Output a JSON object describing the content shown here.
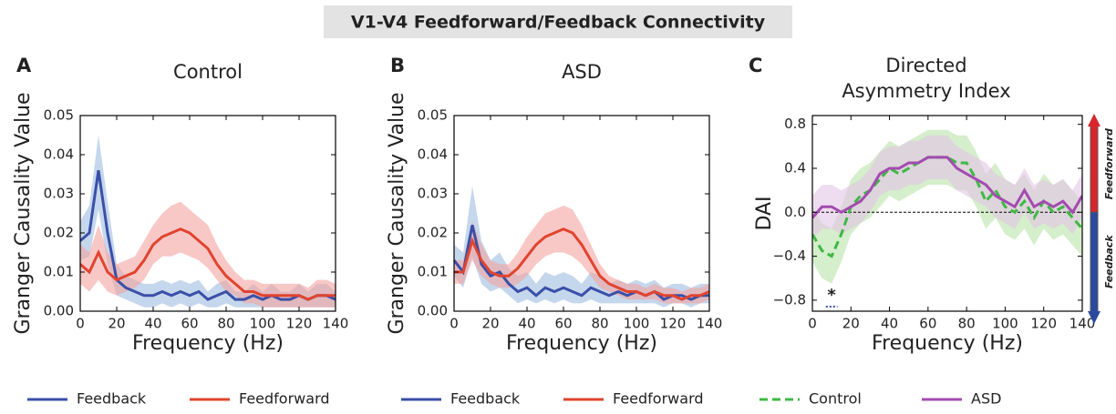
{
  "figure_title": "V1-V4 Feedforward/Feedback Connectivity",
  "chart_data": [
    {
      "type": "line",
      "panel": "A",
      "title": "Control",
      "xlabel": "Frequency (Hz)",
      "ylabel": "Granger Causality Value",
      "x": [
        0,
        5,
        10,
        15,
        20,
        25,
        30,
        35,
        40,
        45,
        50,
        55,
        60,
        65,
        70,
        75,
        80,
        85,
        90,
        95,
        100,
        105,
        110,
        115,
        120,
        125,
        130,
        135,
        140
      ],
      "xlim": [
        0,
        140
      ],
      "xticks": [
        0,
        20,
        40,
        60,
        80,
        100,
        120,
        140
      ],
      "ylim": [
        0,
        0.05
      ],
      "yticks": [
        {
          "value": 0,
          "label": "0.00"
        },
        {
          "value": 0.01,
          "label": "0.01"
        },
        {
          "value": 0.02,
          "label": "0.02"
        },
        {
          "value": 0.03,
          "label": "0.03"
        },
        {
          "value": 0.04,
          "label": "0.04"
        },
        {
          "value": 0.05,
          "label": "0.05"
        }
      ],
      "legend": "bottom",
      "series": [
        {
          "name": "Feedback",
          "color": "#3a4fa8",
          "band_color": "#9fbde0",
          "linestyle": "solid",
          "values": [
            0.018,
            0.02,
            0.036,
            0.02,
            0.008,
            0.006,
            0.005,
            0.004,
            0.004,
            0.005,
            0.004,
            0.005,
            0.004,
            0.005,
            0.003,
            0.004,
            0.005,
            0.003,
            0.003,
            0.004,
            0.003,
            0.004,
            0.003,
            0.003,
            0.004,
            0.003,
            0.004,
            0.004,
            0.003
          ],
          "lower": [
            0.013,
            0.014,
            0.026,
            0.012,
            0.004,
            0.003,
            0.002,
            0.001,
            0.001,
            0.002,
            0.001,
            0.002,
            0.001,
            0.002,
            0.001,
            0.001,
            0.002,
            0.001,
            0.001,
            0.001,
            0.001,
            0.001,
            0.001,
            0.001,
            0.001,
            0.001,
            0.001,
            0.001,
            0.001
          ],
          "upper": [
            0.023,
            0.027,
            0.045,
            0.028,
            0.012,
            0.009,
            0.008,
            0.007,
            0.007,
            0.008,
            0.007,
            0.008,
            0.007,
            0.008,
            0.005,
            0.007,
            0.008,
            0.005,
            0.005,
            0.007,
            0.005,
            0.007,
            0.005,
            0.005,
            0.007,
            0.005,
            0.007,
            0.007,
            0.005
          ]
        },
        {
          "name": "Feedforward",
          "color": "#e0442f",
          "band_color": "#f4a3a0",
          "linestyle": "solid",
          "values": [
            0.012,
            0.01,
            0.015,
            0.01,
            0.008,
            0.009,
            0.01,
            0.013,
            0.017,
            0.019,
            0.02,
            0.021,
            0.02,
            0.018,
            0.016,
            0.012,
            0.009,
            0.007,
            0.005,
            0.005,
            0.004,
            0.004,
            0.004,
            0.004,
            0.004,
            0.003,
            0.004,
            0.004,
            0.004
          ],
          "lower": [
            0.007,
            0.005,
            0.008,
            0.005,
            0.004,
            0.005,
            0.006,
            0.008,
            0.012,
            0.014,
            0.014,
            0.015,
            0.014,
            0.013,
            0.011,
            0.008,
            0.005,
            0.004,
            0.002,
            0.002,
            0.001,
            0.001,
            0.001,
            0.001,
            0.001,
            0.001,
            0.001,
            0.001,
            0.001
          ],
          "upper": [
            0.017,
            0.015,
            0.022,
            0.015,
            0.012,
            0.013,
            0.014,
            0.018,
            0.022,
            0.025,
            0.027,
            0.028,
            0.026,
            0.024,
            0.022,
            0.017,
            0.013,
            0.01,
            0.008,
            0.008,
            0.007,
            0.007,
            0.007,
            0.007,
            0.007,
            0.006,
            0.008,
            0.008,
            0.007
          ]
        }
      ]
    },
    {
      "type": "line",
      "panel": "B",
      "title": "ASD",
      "xlabel": "Frequency (Hz)",
      "ylabel": "Granger Causality Value",
      "x": [
        0,
        5,
        10,
        15,
        20,
        25,
        30,
        35,
        40,
        45,
        50,
        55,
        60,
        65,
        70,
        75,
        80,
        85,
        90,
        95,
        100,
        105,
        110,
        115,
        120,
        125,
        130,
        135,
        140
      ],
      "xlim": [
        0,
        140
      ],
      "xticks": [
        0,
        20,
        40,
        60,
        80,
        100,
        120,
        140
      ],
      "ylim": [
        0,
        0.05
      ],
      "yticks": [
        {
          "value": 0,
          "label": "0.00"
        },
        {
          "value": 0.01,
          "label": "0.01"
        },
        {
          "value": 0.02,
          "label": "0.02"
        },
        {
          "value": 0.03,
          "label": "0.03"
        },
        {
          "value": 0.04,
          "label": "0.04"
        },
        {
          "value": 0.05,
          "label": "0.05"
        }
      ],
      "legend": "bottom",
      "series": [
        {
          "name": "Feedback",
          "color": "#3a4fa8",
          "band_color": "#9fbde0",
          "linestyle": "solid",
          "values": [
            0.013,
            0.01,
            0.022,
            0.012,
            0.009,
            0.01,
            0.007,
            0.005,
            0.006,
            0.004,
            0.006,
            0.005,
            0.006,
            0.005,
            0.004,
            0.006,
            0.005,
            0.004,
            0.005,
            0.004,
            0.005,
            0.004,
            0.005,
            0.003,
            0.004,
            0.004,
            0.003,
            0.004,
            0.004
          ],
          "lower": [
            0.009,
            0.006,
            0.014,
            0.007,
            0.005,
            0.006,
            0.004,
            0.002,
            0.003,
            0.002,
            0.003,
            0.002,
            0.003,
            0.002,
            0.002,
            0.003,
            0.002,
            0.002,
            0.002,
            0.002,
            0.002,
            0.002,
            0.002,
            0.001,
            0.002,
            0.002,
            0.001,
            0.002,
            0.002
          ],
          "upper": [
            0.017,
            0.015,
            0.032,
            0.018,
            0.013,
            0.015,
            0.011,
            0.009,
            0.01,
            0.007,
            0.01,
            0.009,
            0.01,
            0.009,
            0.007,
            0.01,
            0.009,
            0.007,
            0.008,
            0.007,
            0.008,
            0.007,
            0.008,
            0.006,
            0.007,
            0.007,
            0.006,
            0.007,
            0.007
          ]
        },
        {
          "name": "Feedforward",
          "color": "#e0442f",
          "band_color": "#f4a3a0",
          "linestyle": "solid",
          "values": [
            0.01,
            0.01,
            0.018,
            0.013,
            0.01,
            0.009,
            0.009,
            0.011,
            0.014,
            0.017,
            0.019,
            0.02,
            0.021,
            0.02,
            0.017,
            0.013,
            0.009,
            0.007,
            0.006,
            0.005,
            0.005,
            0.004,
            0.005,
            0.004,
            0.004,
            0.003,
            0.004,
            0.004,
            0.005
          ],
          "lower": [
            0.007,
            0.007,
            0.013,
            0.009,
            0.007,
            0.006,
            0.006,
            0.007,
            0.009,
            0.012,
            0.014,
            0.015,
            0.015,
            0.014,
            0.012,
            0.009,
            0.006,
            0.005,
            0.004,
            0.003,
            0.003,
            0.003,
            0.003,
            0.002,
            0.002,
            0.002,
            0.002,
            0.002,
            0.003
          ],
          "upper": [
            0.013,
            0.013,
            0.023,
            0.017,
            0.013,
            0.012,
            0.012,
            0.015,
            0.019,
            0.022,
            0.025,
            0.026,
            0.027,
            0.026,
            0.022,
            0.017,
            0.012,
            0.009,
            0.008,
            0.007,
            0.007,
            0.006,
            0.007,
            0.006,
            0.006,
            0.005,
            0.006,
            0.006,
            0.007
          ]
        }
      ]
    },
    {
      "type": "line",
      "panel": "C",
      "title": "Directed Asymmetry Index",
      "xlabel": "Frequency (Hz)",
      "ylabel": "DAI",
      "x": [
        0,
        5,
        10,
        15,
        20,
        25,
        30,
        35,
        40,
        45,
        50,
        55,
        60,
        65,
        70,
        75,
        80,
        85,
        90,
        95,
        100,
        105,
        110,
        115,
        120,
        125,
        130,
        135,
        140
      ],
      "xlim": [
        0,
        140
      ],
      "xticks": [
        0,
        20,
        40,
        60,
        80,
        100,
        120,
        140
      ],
      "ylim": [
        -0.9,
        0.88
      ],
      "yticks": [
        {
          "value": -0.8,
          "label": "−0.8"
        },
        {
          "value": -0.4,
          "label": "−0.4"
        },
        {
          "value": 0,
          "label": "0.0"
        },
        {
          "value": 0.4,
          "label": "0.4"
        },
        {
          "value": 0.8,
          "label": "0.8"
        }
      ],
      "reference_line": 0,
      "legend": "bottom",
      "arrow_labels": {
        "up": "Feedforward",
        "down": "Feedback"
      },
      "significance": {
        "label": "*",
        "x": [
          7,
          13
        ]
      },
      "series": [
        {
          "name": "Control",
          "color": "#3fb845",
          "band_color": "#b9e3a8",
          "linestyle": "dashed",
          "values": [
            -0.2,
            -0.35,
            -0.4,
            -0.2,
            0.05,
            0.15,
            0.2,
            0.3,
            0.4,
            0.35,
            0.4,
            0.45,
            0.5,
            0.5,
            0.5,
            0.45,
            0.45,
            0.3,
            0.1,
            0.2,
            0.05,
            0,
            0.1,
            -0.05,
            0.1,
            0,
            0.05,
            -0.05,
            -0.15
          ],
          "lower": [
            -0.45,
            -0.6,
            -0.65,
            -0.45,
            -0.2,
            -0.1,
            -0.05,
            0.05,
            0.15,
            0.1,
            0.15,
            0.2,
            0.25,
            0.25,
            0.25,
            0.2,
            0.2,
            0.05,
            -0.15,
            -0.05,
            -0.2,
            -0.25,
            -0.15,
            -0.3,
            -0.15,
            -0.25,
            -0.2,
            -0.3,
            -0.4
          ],
          "upper": [
            0.05,
            -0.1,
            -0.15,
            0.05,
            0.3,
            0.4,
            0.45,
            0.55,
            0.65,
            0.6,
            0.65,
            0.7,
            0.75,
            0.75,
            0.75,
            0.7,
            0.7,
            0.55,
            0.35,
            0.45,
            0.3,
            0.25,
            0.35,
            0.2,
            0.35,
            0.25,
            0.3,
            0.2,
            0.1
          ]
        },
        {
          "name": "ASD",
          "color": "#a34bb0",
          "band_color": "#e2c4e6",
          "linestyle": "solid",
          "values": [
            -0.05,
            0.05,
            0.05,
            0,
            0.05,
            0.1,
            0.2,
            0.35,
            0.4,
            0.4,
            0.45,
            0.45,
            0.5,
            0.5,
            0.5,
            0.4,
            0.35,
            0.3,
            0.25,
            0.15,
            0.1,
            0.05,
            0.2,
            0.05,
            0.1,
            0.05,
            0.1,
            0,
            0.15
          ],
          "lower": [
            -0.25,
            -0.15,
            -0.15,
            -0.2,
            -0.15,
            -0.1,
            0,
            0.15,
            0.2,
            0.2,
            0.25,
            0.25,
            0.3,
            0.3,
            0.3,
            0.2,
            0.15,
            0.1,
            0.05,
            -0.05,
            -0.1,
            -0.15,
            0,
            -0.15,
            -0.1,
            -0.15,
            -0.1,
            -0.2,
            -0.05
          ],
          "upper": [
            0.15,
            0.25,
            0.25,
            0.2,
            0.25,
            0.3,
            0.4,
            0.55,
            0.6,
            0.6,
            0.65,
            0.65,
            0.7,
            0.7,
            0.7,
            0.6,
            0.55,
            0.5,
            0.45,
            0.35,
            0.3,
            0.25,
            0.4,
            0.25,
            0.3,
            0.25,
            0.3,
            0.2,
            0.35
          ]
        }
      ]
    }
  ]
}
